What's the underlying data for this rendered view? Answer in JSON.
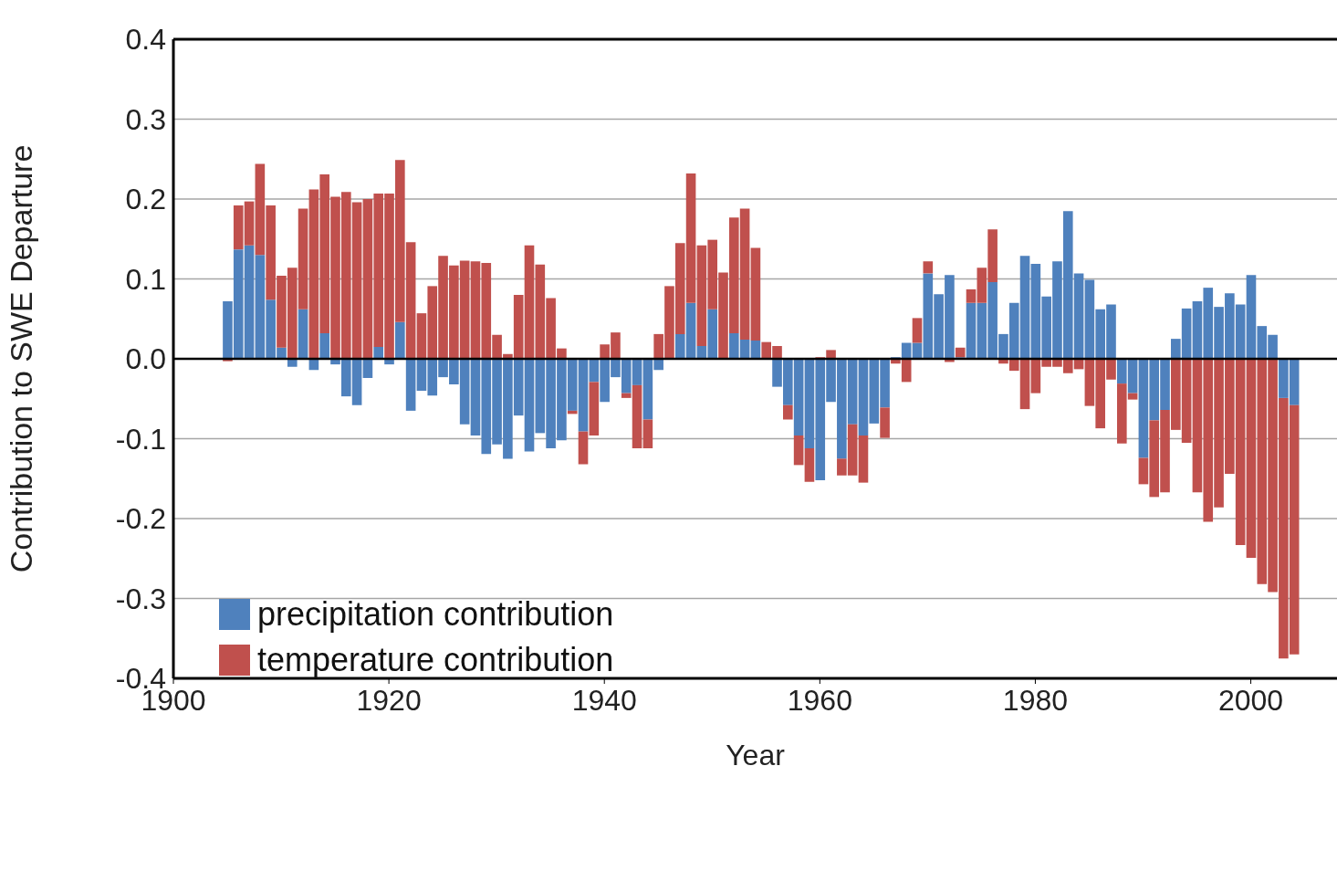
{
  "chart_data": {
    "type": "bar",
    "xlabel": "Year",
    "ylabel": "Contribution to SWE Departure",
    "x": [
      1905,
      1906,
      1907,
      1908,
      1909,
      1910,
      1911,
      1912,
      1913,
      1914,
      1915,
      1916,
      1917,
      1918,
      1919,
      1920,
      1921,
      1922,
      1923,
      1924,
      1925,
      1926,
      1927,
      1928,
      1929,
      1930,
      1931,
      1932,
      1933,
      1934,
      1935,
      1936,
      1937,
      1938,
      1939,
      1940,
      1941,
      1942,
      1943,
      1944,
      1945,
      1946,
      1947,
      1948,
      1949,
      1950,
      1951,
      1952,
      1953,
      1954,
      1955,
      1956,
      1957,
      1958,
      1959,
      1960,
      1961,
      1962,
      1963,
      1964,
      1965,
      1966,
      1967,
      1968,
      1969,
      1970,
      1971,
      1972,
      1973,
      1974,
      1975,
      1976,
      1977,
      1978,
      1979,
      1980,
      1981,
      1982,
      1983,
      1984,
      1985,
      1986,
      1987,
      1988,
      1989,
      1990,
      1991,
      1992,
      1993,
      1994,
      1995,
      1996,
      1997,
      1998,
      1999,
      2000,
      2001,
      2002,
      2003,
      2004
    ],
    "series": [
      {
        "name": "precipitation contribution",
        "color": "#4f81bd",
        "values": [
          0.072,
          0.137,
          0.142,
          0.13,
          0.074,
          0.014,
          -0.01,
          0.062,
          -0.014,
          0.032,
          -0.007,
          -0.047,
          -0.058,
          -0.024,
          0.015,
          -0.007,
          0.046,
          -0.065,
          -0.04,
          -0.046,
          -0.023,
          -0.032,
          -0.082,
          -0.096,
          -0.119,
          -0.107,
          -0.125,
          -0.071,
          -0.116,
          -0.093,
          -0.112,
          -0.102,
          -0.065,
          -0.091,
          -0.029,
          -0.054,
          -0.023,
          -0.043,
          -0.033,
          -0.076,
          -0.014,
          null,
          0.031,
          0.07,
          0.016,
          0.062,
          null,
          0.032,
          0.024,
          0.023,
          null,
          -0.035,
          -0.058,
          -0.096,
          -0.112,
          -0.152,
          -0.054,
          -0.125,
          -0.082,
          -0.096,
          -0.081,
          -0.061,
          0.002,
          0.02,
          0.02,
          0.107,
          0.081,
          0.105,
          0.002,
          0.07,
          0.07,
          0.096,
          0.031,
          0.07,
          0.129,
          0.119,
          0.078,
          0.122,
          0.185,
          0.107,
          0.099,
          0.062,
          0.068,
          -0.031,
          -0.043,
          -0.124,
          -0.077,
          -0.064,
          0.025,
          0.063,
          0.072,
          0.089,
          0.065,
          0.082,
          0.068,
          0.105,
          0.041,
          0.03,
          -0.049,
          -0.058
        ]
      },
      {
        "name": "temperature contribution",
        "color": "#c0504d",
        "values": [
          -0.003,
          0.055,
          0.055,
          0.114,
          0.118,
          0.09,
          0.114,
          0.126,
          0.212,
          0.199,
          0.203,
          0.209,
          0.196,
          0.2,
          0.192,
          0.207,
          0.203,
          0.146,
          0.057,
          0.091,
          0.129,
          0.117,
          0.123,
          0.122,
          0.12,
          0.03,
          0.006,
          0.08,
          0.142,
          0.118,
          0.076,
          0.013,
          -0.004,
          -0.041,
          -0.067,
          0.018,
          0.033,
          -0.006,
          -0.079,
          -0.036,
          0.031,
          0.091,
          0.114,
          0.162,
          0.126,
          0.087,
          0.108,
          0.145,
          0.164,
          0.116,
          0.021,
          0.016,
          -0.018,
          -0.037,
          -0.042,
          0.002,
          0.011,
          -0.021,
          -0.064,
          -0.059,
          null,
          -0.038,
          -0.006,
          -0.029,
          0.031,
          0.015,
          null,
          -0.004,
          0.012,
          0.017,
          0.044,
          0.066,
          -0.006,
          -0.015,
          -0.063,
          -0.043,
          -0.01,
          -0.01,
          -0.018,
          -0.013,
          -0.059,
          -0.087,
          -0.026,
          -0.075,
          -0.008,
          -0.033,
          -0.096,
          -0.103,
          -0.089,
          -0.105,
          -0.167,
          -0.204,
          -0.186,
          -0.144,
          -0.233,
          -0.249,
          -0.282,
          -0.292,
          -0.326,
          -0.312
        ]
      }
    ],
    "xlim": [
      1900,
      2008
    ],
    "xticks": [
      1900,
      1920,
      1940,
      1960,
      1980,
      2000
    ],
    "ylim": [
      -0.4,
      0.4
    ],
    "yticks": [
      {
        "value": -0.4,
        "label": "-0.4"
      },
      {
        "value": -0.3,
        "label": "-0.3"
      },
      {
        "value": -0.2,
        "label": "-0.2"
      },
      {
        "value": -0.1,
        "label": "-0.1"
      },
      {
        "value": 0,
        "label": "0.0"
      },
      {
        "value": 0.1,
        "label": "0.1"
      },
      {
        "value": 0.2,
        "label": "0.2"
      },
      {
        "value": 0.3,
        "label": "0.3"
      },
      {
        "value": 0.4,
        "label": "0.4"
      }
    ],
    "ref_lines": [
      {
        "axis": "y",
        "value": 0,
        "color": "#000000"
      }
    ],
    "stacked": true,
    "grid": "y",
    "legend": "bottom left"
  }
}
